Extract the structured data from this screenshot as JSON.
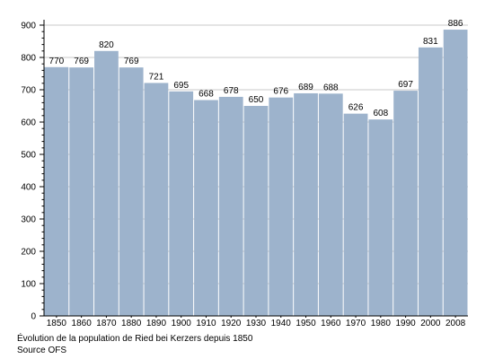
{
  "chart_data": {
    "type": "bar",
    "categories": [
      "1850",
      "1860",
      "1870",
      "1880",
      "1890",
      "1900",
      "1910",
      "1920",
      "1930",
      "1940",
      "1950",
      "1960",
      "1970",
      "1980",
      "1990",
      "2000",
      "2008"
    ],
    "values": [
      770,
      769,
      820,
      769,
      721,
      695,
      668,
      678,
      650,
      676,
      689,
      688,
      626,
      608,
      697,
      831,
      886
    ],
    "data_labels": [
      "770",
      "769",
      "820",
      "769",
      "721",
      "695",
      "668",
      "678",
      "650",
      "676",
      "689",
      "688",
      "626",
      "608",
      "697",
      "831",
      "886"
    ],
    "ylim": [
      0,
      900
    ],
    "yticks": [
      0,
      100,
      200,
      300,
      400,
      500,
      600,
      700,
      800,
      900
    ],
    "grid": true,
    "colors": {
      "bar": "#9db3cc",
      "grid": "#c8c8c8",
      "axis": "#000000"
    }
  },
  "caption": {
    "line1": "Évolution de la population de Ried bei Kerzers depuis 1850",
    "line2": "Source OFS"
  }
}
